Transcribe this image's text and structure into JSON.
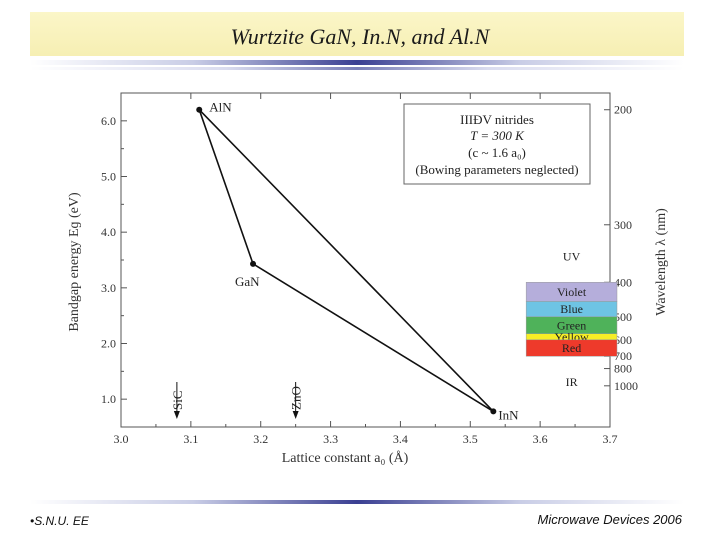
{
  "slide": {
    "title": "Wurtzite GaN, In.N, and Al.N",
    "footer_left": "•S.N.U. EE",
    "footer_right": "Microwave Devices 2006"
  },
  "chart_data": {
    "type": "line",
    "title": "",
    "xlabel": "Lattice constant  a₀ (Å)",
    "ylabel": "Bandgap  energy   Eɡ  (eV)",
    "y2label": "Wavelength  λ  (nm)",
    "xlim": [
      3.0,
      3.7
    ],
    "ylim": [
      0.5,
      6.5
    ],
    "xticks": [
      "3.0",
      "3.1",
      "3.2",
      "3.3",
      "3.4",
      "3.5",
      "3.6",
      "3.7"
    ],
    "yticks": [
      "1.0",
      "2.0",
      "3.0",
      "4.0",
      "5.0",
      "6.0"
    ],
    "xtick_values": [
      3.0,
      3.1,
      3.2,
      3.3,
      3.4,
      3.5,
      3.6,
      3.7
    ],
    "ytick_values": [
      1.0,
      2.0,
      3.0,
      4.0,
      5.0,
      6.0
    ],
    "y2ticks": [
      {
        "label": "200",
        "value": 200
      },
      {
        "label": "300",
        "value": 300
      },
      {
        "label": "400",
        "value": 400
      },
      {
        "label": "500",
        "value": 500
      },
      {
        "label": "600",
        "value": 600
      },
      {
        "label": "700",
        "value": 700
      },
      {
        "label": "800",
        "value": 800
      },
      {
        "label": "1000",
        "value": 1000
      }
    ],
    "points": [
      {
        "name": "AlN",
        "x": 3.112,
        "y": 6.2
      },
      {
        "name": "GaN",
        "x": 3.189,
        "y": 3.43
      },
      {
        "name": "InN",
        "x": 3.533,
        "y": 0.78
      }
    ],
    "lines": [
      [
        "AlN",
        "GaN"
      ],
      [
        "GaN",
        "InN"
      ],
      [
        "AlN",
        "InN"
      ]
    ],
    "substrates": [
      {
        "name": "SiC",
        "x": 3.08
      },
      {
        "name": "ZnO",
        "x": 3.25
      }
    ],
    "legend": {
      "lines": [
        "IIIĐV  nitrides",
        "T = 300 K",
        "(c  ~ 1.6 a₀)",
        "(Bowing parameters neglected)"
      ],
      "placement": "top-right"
    },
    "spectrum": [
      {
        "name": "UV",
        "from_nm": null,
        "to_nm": 400,
        "color": "#ffffff"
      },
      {
        "name": "Violet",
        "from_nm": 400,
        "to_nm": 450,
        "color": "#b5aedb"
      },
      {
        "name": "Blue",
        "from_nm": 450,
        "to_nm": 500,
        "color": "#6ec4e4"
      },
      {
        "name": "Green",
        "from_nm": 500,
        "to_nm": 570,
        "color": "#4fb25a"
      },
      {
        "name": "Yellow",
        "from_nm": 570,
        "to_nm": 600,
        "color": "#f6ee26"
      },
      {
        "name": "Red",
        "from_nm": 600,
        "to_nm": 700,
        "color": "#ee3a2b"
      },
      {
        "name": "IR",
        "from_nm": 700,
        "to_nm": null,
        "color": "#ffffff"
      }
    ]
  }
}
